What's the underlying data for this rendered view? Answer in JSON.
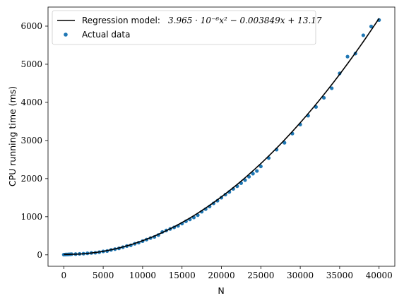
{
  "chart_data": {
    "type": "scatter",
    "title": "",
    "xlabel": "N",
    "ylabel": "CPU running time (ms)",
    "xlim": [
      -2000,
      42000
    ],
    "ylim": [
      -300,
      6500
    ],
    "xticks": [
      0,
      5000,
      10000,
      15000,
      20000,
      25000,
      30000,
      35000,
      40000
    ],
    "yticks": [
      0,
      1000,
      2000,
      3000,
      4000,
      5000,
      6000
    ],
    "grid": false,
    "legend_position": "top-left",
    "model": {
      "name": "Regression model:",
      "equation_text": "3.965 · 10⁻⁶x² − 0.003849x + 13.17",
      "a": 3.965e-06,
      "b": -0.003849,
      "c": 13.17,
      "x_range": [
        0,
        40000
      ],
      "color": "#000000"
    },
    "series": [
      {
        "name": "Actual data",
        "color": "#1f77b4",
        "x": [
          0,
          200,
          400,
          600,
          800,
          1000,
          1500,
          2000,
          2500,
          3000,
          3500,
          4000,
          4500,
          5000,
          5500,
          6000,
          6500,
          7000,
          7500,
          8000,
          8500,
          9000,
          9500,
          10000,
          10500,
          11000,
          11500,
          12000,
          12500,
          13000,
          13500,
          14000,
          14500,
          15000,
          15500,
          16000,
          16500,
          17000,
          17500,
          18000,
          18500,
          19000,
          19500,
          20000,
          20500,
          21000,
          21500,
          22000,
          22500,
          23000,
          23500,
          24000,
          24500,
          25000,
          26000,
          27000,
          28000,
          29000,
          30000,
          31000,
          32000,
          33000,
          34000,
          35000,
          36000,
          37000,
          38000,
          39000,
          40000
        ],
        "y": [
          5,
          8,
          10,
          12,
          15,
          18,
          20,
          25,
          30,
          40,
          50,
          55,
          70,
          90,
          100,
          130,
          150,
          170,
          200,
          230,
          250,
          290,
          320,
          360,
          400,
          440,
          470,
          520,
          600,
          640,
          680,
          720,
          760,
          820,
          880,
          930,
          980,
          1040,
          1130,
          1200,
          1270,
          1350,
          1420,
          1500,
          1580,
          1650,
          1730,
          1800,
          1880,
          1960,
          2050,
          2130,
          2200,
          2320,
          2540,
          2760,
          2940,
          3180,
          3420,
          3650,
          3880,
          4120,
          4370,
          4760,
          5200,
          5280,
          5760,
          5990,
          6160
        ]
      }
    ]
  }
}
